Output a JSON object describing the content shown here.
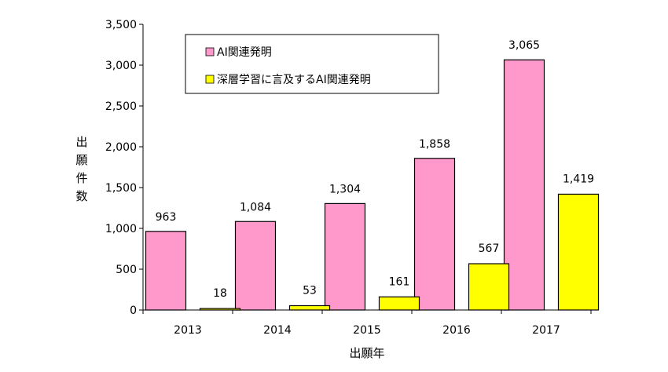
{
  "chart_data": {
    "type": "bar",
    "categories": [
      "2013",
      "2014",
      "2015",
      "2016",
      "2017"
    ],
    "series": [
      {
        "name": "AI関連発明",
        "values": [
          963,
          1084,
          1304,
          1858,
          3065
        ],
        "color": "#FF99CC"
      },
      {
        "name": "深層学習に言及するAI関連発明",
        "values": [
          18,
          53,
          161,
          567,
          1419
        ],
        "color": "#FFFF00"
      }
    ],
    "data_labels": [
      [
        "963",
        "1,084",
        "1,304",
        "1,858",
        "3,065"
      ],
      [
        "18",
        "53",
        "161",
        "567",
        "1,419"
      ]
    ],
    "xlabel": "出願年",
    "ylabel": "出願件数",
    "ylim": [
      0,
      3500
    ],
    "yticks": [
      0,
      500,
      1000,
      1500,
      2000,
      2500,
      3000,
      3500
    ],
    "ytick_labels": [
      "0",
      "500",
      "1,000",
      "1,500",
      "2,000",
      "2,500",
      "3,000",
      "3,500"
    ],
    "grid": false,
    "legend_position": "top-left"
  }
}
